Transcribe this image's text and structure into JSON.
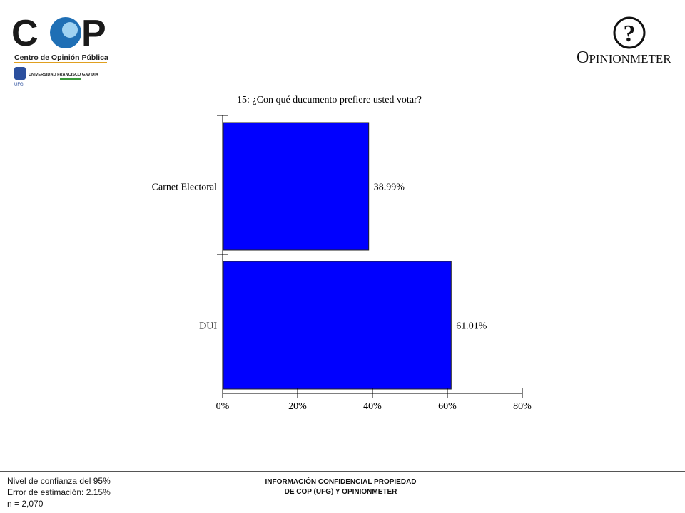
{
  "logos": {
    "cop_letters_c": "C",
    "cop_letters_p": "P",
    "cop_subtitle": "Centro de Opinión Pública",
    "ufg_text": "UNIVERSIDAD FRANCISCO GAVIDIA",
    "ufg_badge": "UFG",
    "opinionmeter_mark": "?",
    "opinionmeter_first": "O",
    "opinionmeter_rest": "PINIONMETER"
  },
  "chart_data": {
    "type": "bar",
    "orientation": "horizontal",
    "title": "15: ¿Con qué ducumento prefiere usted votar?",
    "categories": [
      "Carnet Electoral",
      "DUI"
    ],
    "values": [
      38.99,
      61.01
    ],
    "value_labels": [
      "38.99%",
      "61.01%"
    ],
    "xlim": [
      0,
      80
    ],
    "xticks": [
      0,
      20,
      40,
      60,
      80
    ],
    "xtick_labels": [
      "0%",
      "20%",
      "40%",
      "60%",
      "80%"
    ],
    "bar_color": "#0000ff",
    "grid": false
  },
  "footer": {
    "stats": [
      "Nivel de confianza del 95%",
      "Error de estimación: 2.15%",
      "n = 2,070"
    ],
    "confidential_line1": "INFORMACIÓN CONFIDENCIAL PROPIEDAD",
    "confidential_line2": "DE COP (UFG) Y OPINIONMETER"
  }
}
